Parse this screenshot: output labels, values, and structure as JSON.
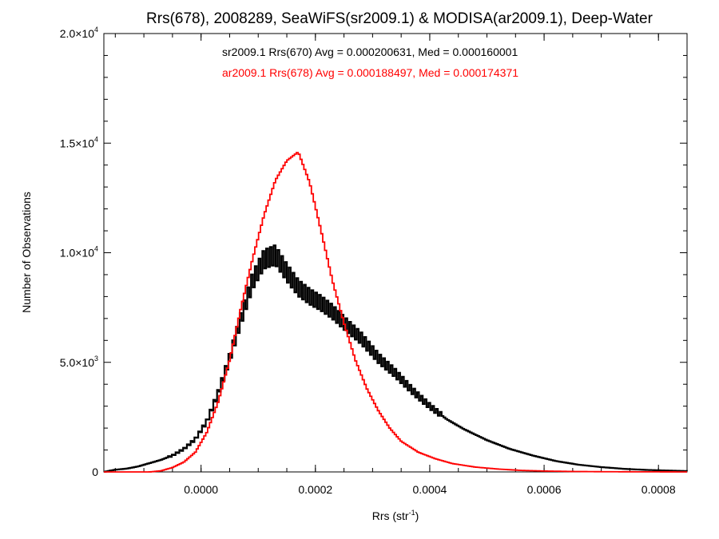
{
  "chart_data": {
    "type": "line",
    "title": "Rrs(678), 2008289, SeaWiFS(sr2009.1) & MODISA(ar2009.1), Deep-Water",
    "xlabel": "Rrs (str",
    "xlabel_sup": "-1",
    "xlabel_end": ")",
    "ylabel": "Number of Observations",
    "xlim": [
      -0.00017,
      0.00085
    ],
    "ylim": [
      0,
      20000
    ],
    "x_ticks": [
      0.0,
      0.0002,
      0.0004,
      0.0006,
      0.0008
    ],
    "x_tick_labels": [
      "0.0000",
      "0.0002",
      "0.0004",
      "0.0006",
      "0.0008"
    ],
    "y_ticks": [
      0,
      5000,
      10000,
      15000,
      20000
    ],
    "y_tick_labels": [
      {
        "base": "0",
        "exp": ""
      },
      {
        "base": "5.0×10",
        "exp": "3"
      },
      {
        "base": "1.0×10",
        "exp": "4"
      },
      {
        "base": "1.5×10",
        "exp": "4"
      },
      {
        "base": "2.0×10",
        "exp": "4"
      }
    ],
    "grid": false,
    "series": [
      {
        "color": "#000000",
        "annotation": "sr2009.1 Rrs(670) Avg = 0.000200631, Med = 0.000160001",
        "jagged": true,
        "x": [
          -0.00017,
          -0.00015,
          -0.00013,
          -0.00011,
          -9e-05,
          -7e-05,
          -5e-05,
          -3e-05,
          -1e-05,
          1e-05,
          3e-05,
          5e-05,
          7e-05,
          9e-05,
          0.00011,
          0.00013,
          0.00015,
          0.00017,
          0.00019,
          0.00021,
          0.00023,
          0.00025,
          0.00028,
          0.00031,
          0.00034,
          0.00037,
          0.0004,
          0.00043,
          0.00046,
          0.0005,
          0.00054,
          0.00058,
          0.00062,
          0.00066,
          0.0007,
          0.00074,
          0.00078,
          0.00082,
          0.00085
        ],
        "values": [
          0,
          100,
          150,
          250,
          400,
          550,
          750,
          1050,
          1500,
          2300,
          3600,
          5200,
          7000,
          8700,
          9700,
          9900,
          9100,
          8400,
          8000,
          7700,
          7300,
          6800,
          6100,
          5200,
          4500,
          3700,
          3000,
          2400,
          1950,
          1450,
          1050,
          750,
          500,
          330,
          220,
          140,
          90,
          60,
          40
        ]
      },
      {
        "color": "#ff0000",
        "annotation": "ar2009.1 Rrs(678) Avg = 0.000188497, Med = 0.000174371",
        "jagged": false,
        "x": [
          -0.00017,
          -0.00012,
          -9e-05,
          -7e-05,
          -5e-05,
          -3e-05,
          -1e-05,
          1e-05,
          3e-05,
          5e-05,
          7e-05,
          9e-05,
          0.00011,
          0.00013,
          0.00015,
          0.00017,
          0.00019,
          0.00021,
          0.00023,
          0.00025,
          0.00027,
          0.00029,
          0.00031,
          0.00033,
          0.00035,
          0.00038,
          0.00041,
          0.00044,
          0.00048,
          0.00052,
          0.00056,
          0.0006,
          0.00065,
          0.0007,
          0.00085
        ],
        "values": [
          0,
          0,
          0,
          50,
          200,
          450,
          900,
          1800,
          3200,
          5100,
          7500,
          9700,
          11700,
          13300,
          14200,
          14600,
          13200,
          11000,
          8700,
          6800,
          5100,
          3800,
          2800,
          2000,
          1400,
          900,
          600,
          380,
          220,
          130,
          70,
          40,
          20,
          10,
          0
        ]
      }
    ]
  }
}
